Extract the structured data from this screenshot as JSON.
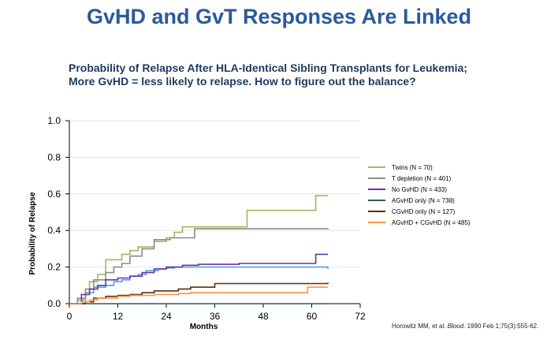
{
  "slide": {
    "title": "GvHD and GvT Responses Are Linked",
    "subtitle_line1": "Probability of Relapse After HLA-Identical Sibling Transplants for Leukemia;",
    "subtitle_line2": "More GvHD = less likely to relapse. How to figure out the balance?"
  },
  "citation": {
    "authors": "Horowitz MM, et al. ",
    "journal": "Blood",
    "details": ". 1990 Feb 1;75(3):555-62."
  },
  "chart_data": {
    "type": "line",
    "step": true,
    "title": "",
    "xlabel": "Months",
    "ylabel": "Probability of Relapse",
    "xlim": [
      0,
      72
    ],
    "ylim": [
      0,
      1.0
    ],
    "x_ticks": [
      0,
      12,
      24,
      36,
      48,
      60,
      72
    ],
    "y_ticks": [
      0.0,
      0.2,
      0.4,
      0.6,
      0.8,
      1.0
    ],
    "y_tick_labels": [
      "0.0",
      "0.2",
      "0.4",
      "0.6",
      "0.8",
      "1.0"
    ],
    "grid": true,
    "legend_position": "right",
    "series": [
      {
        "name": "Twins (N = 70)",
        "color": "#9BBB59",
        "points": [
          [
            0,
            0
          ],
          [
            2,
            0.02
          ],
          [
            4,
            0.06
          ],
          [
            5,
            0.12
          ],
          [
            7,
            0.16
          ],
          [
            9,
            0.24
          ],
          [
            13,
            0.27
          ],
          [
            15,
            0.29
          ],
          [
            17,
            0.31
          ],
          [
            21,
            0.34
          ],
          [
            24,
            0.36
          ],
          [
            26,
            0.39
          ],
          [
            28,
            0.42
          ],
          [
            44,
            0.51
          ],
          [
            61,
            0.59
          ],
          [
            64,
            0.59
          ]
        ]
      },
      {
        "name": "T depletion (N = 401)",
        "color": "#8C8C8C",
        "points": [
          [
            0,
            0
          ],
          [
            2,
            0.03
          ],
          [
            4,
            0.08
          ],
          [
            6,
            0.13
          ],
          [
            9,
            0.17
          ],
          [
            11,
            0.2
          ],
          [
            13,
            0.22
          ],
          [
            15,
            0.26
          ],
          [
            18,
            0.3
          ],
          [
            21,
            0.35
          ],
          [
            25,
            0.36
          ],
          [
            29,
            0.36
          ],
          [
            31,
            0.41
          ],
          [
            44,
            0.41
          ],
          [
            64,
            0.405
          ]
        ]
      },
      {
        "name": "No GvHD (N = 433)",
        "color": "#7030A0",
        "points": [
          [
            0,
            0
          ],
          [
            3,
            0.05
          ],
          [
            5,
            0.08
          ],
          [
            7,
            0.1
          ],
          [
            9,
            0.13
          ],
          [
            12,
            0.14
          ],
          [
            15,
            0.15
          ],
          [
            18,
            0.17
          ],
          [
            21,
            0.19
          ],
          [
            24,
            0.2
          ],
          [
            28,
            0.21
          ],
          [
            32,
            0.215
          ],
          [
            42,
            0.22
          ],
          [
            50,
            0.22
          ],
          [
            60,
            0.22
          ],
          [
            61,
            0.27
          ],
          [
            64,
            0.27
          ]
        ]
      },
      {
        "name": "AGvHD only (N = 738)",
        "color": "#2E5B5B",
        "points": [
          [
            0,
            0
          ],
          [
            64,
            0
          ]
        ]
      },
      {
        "name": "CGvHD only (N = 127)",
        "color": "#5C2D0A",
        "points": [
          [
            0,
            0
          ],
          [
            4,
            0.01
          ],
          [
            6,
            0.03
          ],
          [
            9,
            0.04
          ],
          [
            12,
            0.045
          ],
          [
            15,
            0.05
          ],
          [
            18,
            0.06
          ],
          [
            21,
            0.07
          ],
          [
            27,
            0.08
          ],
          [
            30,
            0.09
          ],
          [
            36,
            0.11
          ],
          [
            44,
            0.11
          ],
          [
            64,
            0.115
          ]
        ]
      },
      {
        "name": "AGvHD + CGvHD (N = 485)",
        "color": "#F79646",
        "points": [
          [
            0,
            0
          ],
          [
            3,
            0.01
          ],
          [
            5,
            0.02
          ],
          [
            7,
            0.03
          ],
          [
            12,
            0.04
          ],
          [
            15,
            0.045
          ],
          [
            21,
            0.05
          ],
          [
            27,
            0.055
          ],
          [
            30,
            0.06
          ],
          [
            48,
            0.06
          ],
          [
            58,
            0.06
          ],
          [
            59,
            0.09
          ],
          [
            64,
            0.09
          ]
        ]
      }
    ],
    "extra_lines": [
      {
        "name": "AGvHD only light-blue curve",
        "color": "#4AA3DF",
        "points": [
          [
            0,
            0
          ],
          [
            2,
            0.02
          ],
          [
            4,
            0.06
          ],
          [
            6,
            0.09
          ],
          [
            9,
            0.1
          ],
          [
            11,
            0.12
          ],
          [
            13,
            0.13
          ],
          [
            15,
            0.15
          ],
          [
            17,
            0.16
          ],
          [
            19,
            0.18
          ],
          [
            22,
            0.19
          ],
          [
            24,
            0.195
          ],
          [
            26,
            0.2
          ],
          [
            30,
            0.2
          ],
          [
            44,
            0.2
          ],
          [
            64,
            0.19
          ]
        ]
      }
    ]
  }
}
